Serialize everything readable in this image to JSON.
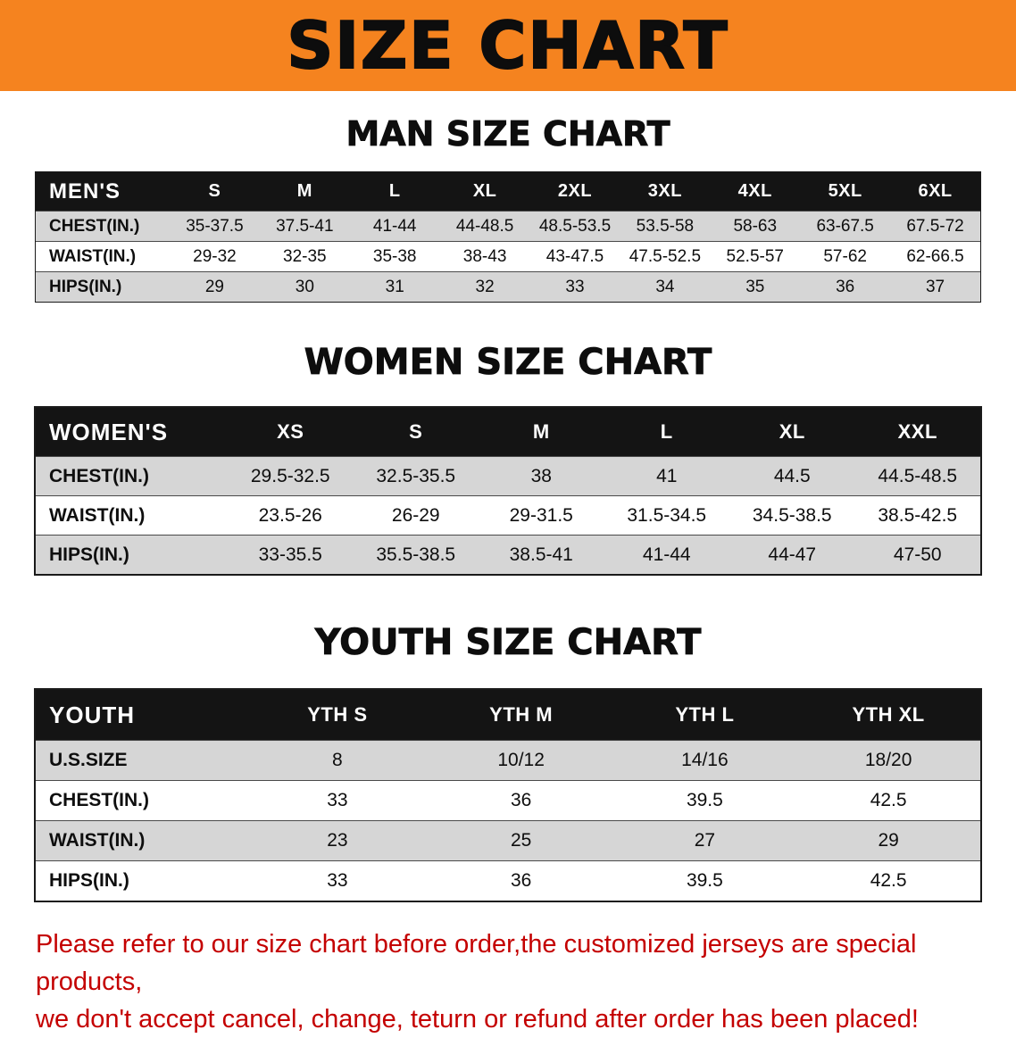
{
  "colors": {
    "banner_bg": "#f5831f",
    "header_bar": "#141414",
    "row_shade": "#d6d6d6",
    "disclaimer_red": "#c40000"
  },
  "banner": {
    "title": "SIZE CHART"
  },
  "sections": [
    {
      "heading": "MAN SIZE CHART",
      "table": {
        "header": [
          "MEN'S",
          "S",
          "M",
          "L",
          "XL",
          "2XL",
          "3XL",
          "4XL",
          "5XL",
          "6XL"
        ],
        "rows": [
          [
            "CHEST(IN.)",
            "35-37.5",
            "37.5-41",
            "41-44",
            "44-48.5",
            "48.5-53.5",
            "53.5-58",
            "58-63",
            "63-67.5",
            "67.5-72"
          ],
          [
            "WAIST(IN.)",
            "29-32",
            "32-35",
            "35-38",
            "38-43",
            "43-47.5",
            "47.5-52.5",
            "52.5-57",
            "57-62",
            "62-66.5"
          ],
          [
            "HIPS(IN.)",
            "29",
            "30",
            "31",
            "32",
            "33",
            "34",
            "35",
            "36",
            "37"
          ]
        ]
      }
    },
    {
      "heading": "WOMEN SIZE CHART",
      "table": {
        "header": [
          "WOMEN'S",
          "XS",
          "S",
          "M",
          "L",
          "XL",
          "XXL"
        ],
        "rows": [
          [
            "CHEST(IN.)",
            "29.5-32.5",
            "32.5-35.5",
            "38",
            "41",
            "44.5",
            "44.5-48.5"
          ],
          [
            "WAIST(IN.)",
            "23.5-26",
            "26-29",
            "29-31.5",
            "31.5-34.5",
            "34.5-38.5",
            "38.5-42.5"
          ],
          [
            "HIPS(IN.)",
            "33-35.5",
            "35.5-38.5",
            "38.5-41",
            "41-44",
            "44-47",
            "47-50"
          ]
        ]
      }
    },
    {
      "heading": "YOUTH SIZE CHART",
      "table": {
        "header": [
          "YOUTH",
          "YTH S",
          "YTH M",
          "YTH L",
          "YTH XL"
        ],
        "rows": [
          [
            "U.S.SIZE",
            "8",
            "10/12",
            "14/16",
            "18/20"
          ],
          [
            "CHEST(IN.)",
            "33",
            "36",
            "39.5",
            "42.5"
          ],
          [
            "WAIST(IN.)",
            "23",
            "25",
            "27",
            "29"
          ],
          [
            "HIPS(IN.)",
            "33",
            "36",
            "39.5",
            "42.5"
          ]
        ]
      }
    }
  ],
  "disclaimer": {
    "line1": "Please refer to our size chart before order,the customized jerseys are special products,",
    "line2": "we don't accept cancel, change, teturn or refund after order has been placed!"
  }
}
